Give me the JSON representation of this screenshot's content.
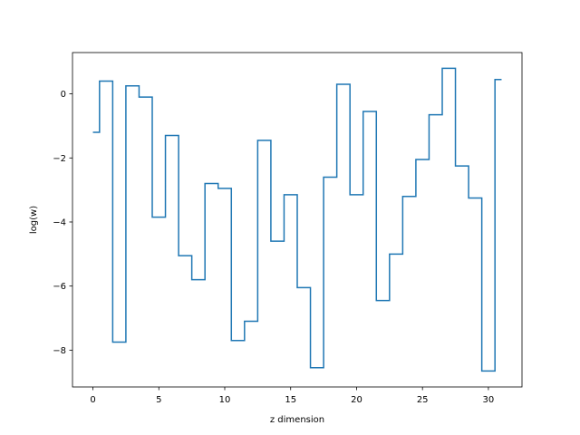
{
  "chart_data": {
    "type": "line",
    "drawstyle": "steps-mid",
    "title": "",
    "xlabel": "z dimension",
    "ylabel": "log(w)",
    "xlim": [
      -1.55,
      32.55
    ],
    "ylim": [
      -9.15,
      1.29
    ],
    "x_ticks": [
      0,
      5,
      10,
      15,
      20,
      25,
      30
    ],
    "y_ticks": [
      -8,
      -6,
      -4,
      -2,
      0
    ],
    "grid": false,
    "legend": "none",
    "series": [
      {
        "color": "#1f77b4",
        "x": [
          0,
          1,
          2,
          3,
          4,
          5,
          6,
          7,
          8,
          9,
          10,
          11,
          12,
          13,
          14,
          15,
          16,
          17,
          18,
          19,
          20,
          21,
          22,
          23,
          24,
          25,
          26,
          27,
          28,
          29,
          30,
          31
        ],
        "y": [
          -1.2,
          0.4,
          -7.75,
          0.25,
          -0.1,
          -3.85,
          -1.3,
          -5.05,
          -5.8,
          -2.8,
          -2.95,
          -7.7,
          -7.1,
          -1.45,
          -4.6,
          -3.15,
          -6.05,
          -8.55,
          -2.6,
          0.3,
          -3.15,
          -0.55,
          -6.45,
          -5.0,
          -3.2,
          -2.05,
          -0.65,
          0.8,
          -2.25,
          -3.25,
          -8.65,
          0.45
        ]
      }
    ]
  }
}
